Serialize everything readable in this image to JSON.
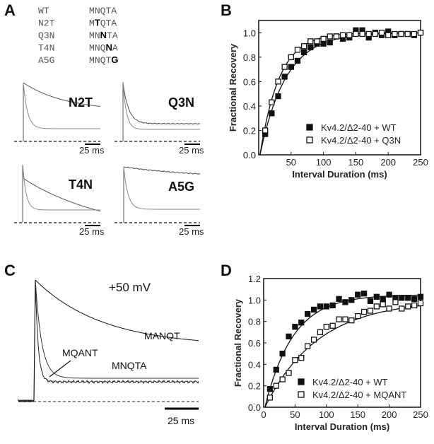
{
  "panel_labels": {
    "a": "A",
    "b": "B",
    "c": "C",
    "d": "D"
  },
  "panel_a": {
    "sequences": [
      {
        "name": "WT",
        "seq": [
          "M",
          "N",
          "Q",
          "T",
          "A"
        ],
        "mut": -1
      },
      {
        "name": "N2T",
        "seq": [
          "M",
          "T",
          "Q",
          "T",
          "A"
        ],
        "mut": 1
      },
      {
        "name": "Q3N",
        "seq": [
          "M",
          "N",
          "N",
          "T",
          "A"
        ],
        "mut": 2
      },
      {
        "name": "T4N",
        "seq": [
          "M",
          "N",
          "Q",
          "N",
          "A"
        ],
        "mut": 3
      },
      {
        "name": "A5G",
        "seq": [
          "M",
          "N",
          "Q",
          "T",
          "G"
        ],
        "mut": 4
      }
    ],
    "traces": [
      {
        "label": "N2T",
        "scale": "25 ms"
      },
      {
        "label": "Q3N",
        "scale": "25 ms"
      },
      {
        "label": "T4N",
        "scale": "25 ms"
      },
      {
        "label": "A5G",
        "scale": "25 ms"
      }
    ]
  },
  "panel_c": {
    "voltage": "+50 mV",
    "labels": {
      "manqt": "MANQT",
      "mnqta": "MNQTA",
      "mqant": "MQANT"
    },
    "scale": "25 ms"
  },
  "chart_data": [
    {
      "panel": "B",
      "type": "scatter",
      "xlabel": "Interval Duration (ms)",
      "ylabel": "Fractional Recovery",
      "xlim": [
        0,
        250
      ],
      "ylim": [
        0,
        1.1
      ],
      "xticks": [
        50,
        100,
        150,
        200,
        250
      ],
      "yticks": [
        0.0,
        0.2,
        0.4,
        0.6,
        0.8,
        1.0
      ],
      "legend": "bottom-right",
      "x": [
        10,
        20,
        30,
        40,
        50,
        60,
        70,
        80,
        90,
        100,
        110,
        120,
        130,
        140,
        150,
        160,
        170,
        180,
        190,
        200,
        210,
        220,
        230,
        240,
        250
      ],
      "series": [
        {
          "name": "Kv4.2/Δ2-40 + WT",
          "marker": "filled-square",
          "fit_tau": 40,
          "values": [
            0.17,
            0.34,
            0.48,
            0.64,
            0.72,
            0.77,
            0.84,
            0.88,
            0.91,
            0.91,
            0.92,
            0.97,
            0.95,
            0.96,
            1.02,
            1.02,
            0.96,
            1.0,
            0.98,
            1.01,
            0.98,
            0.99,
            0.99,
            0.98,
            1.0
          ]
        },
        {
          "name": "Kv4.2/Δ2-40 + Q3N",
          "marker": "open-square",
          "fit_tau": 30,
          "values": [
            0.2,
            0.43,
            0.6,
            0.72,
            0.8,
            0.86,
            0.89,
            0.93,
            0.93,
            0.95,
            0.97,
            0.97,
            0.98,
            0.98,
            0.99,
            0.99,
            0.99,
            0.99,
            1.0,
            0.98,
            0.99,
            0.99,
            0.99,
            0.99,
            1.0
          ]
        }
      ]
    },
    {
      "panel": "D",
      "type": "scatter",
      "xlabel": "Interval Duration (ms)",
      "ylabel": "Fractional Recovery",
      "xlim": [
        0,
        250
      ],
      "ylim": [
        0,
        1.2
      ],
      "xticks": [
        0,
        50,
        100,
        150,
        200,
        250
      ],
      "yticks": [
        0.0,
        0.2,
        0.4,
        0.6,
        0.8,
        1.0,
        1.2
      ],
      "legend": "bottom-right",
      "x": [
        10,
        20,
        30,
        40,
        50,
        60,
        70,
        80,
        90,
        100,
        110,
        120,
        130,
        140,
        150,
        160,
        170,
        180,
        190,
        200,
        210,
        220,
        230,
        240,
        250
      ],
      "series": [
        {
          "name": "Kv4.2/Δ2-40 + WT",
          "marker": "filled-square",
          "fit_tau": 45,
          "fit_amp": 1.05,
          "values": [
            0.17,
            0.35,
            0.5,
            0.66,
            0.75,
            0.79,
            0.87,
            0.91,
            0.94,
            0.94,
            0.95,
            1.01,
            0.98,
            1.0,
            1.05,
            1.06,
            0.99,
            1.03,
            1.01,
            1.05,
            1.02,
            1.02,
            1.02,
            1.01,
            1.03
          ]
        },
        {
          "name": "Kv4.2/Δ2-40 + MQANT",
          "marker": "open-square",
          "fit_tau": 85,
          "fit_amp": 1.0,
          "values": [
            0.09,
            0.2,
            0.26,
            0.32,
            0.44,
            0.46,
            0.57,
            0.63,
            0.7,
            0.75,
            0.76,
            0.82,
            0.82,
            0.81,
            0.85,
            0.89,
            0.9,
            0.94,
            0.96,
            0.92,
            0.98,
            0.92,
            0.94,
            0.95,
            0.97
          ]
        }
      ]
    }
  ]
}
